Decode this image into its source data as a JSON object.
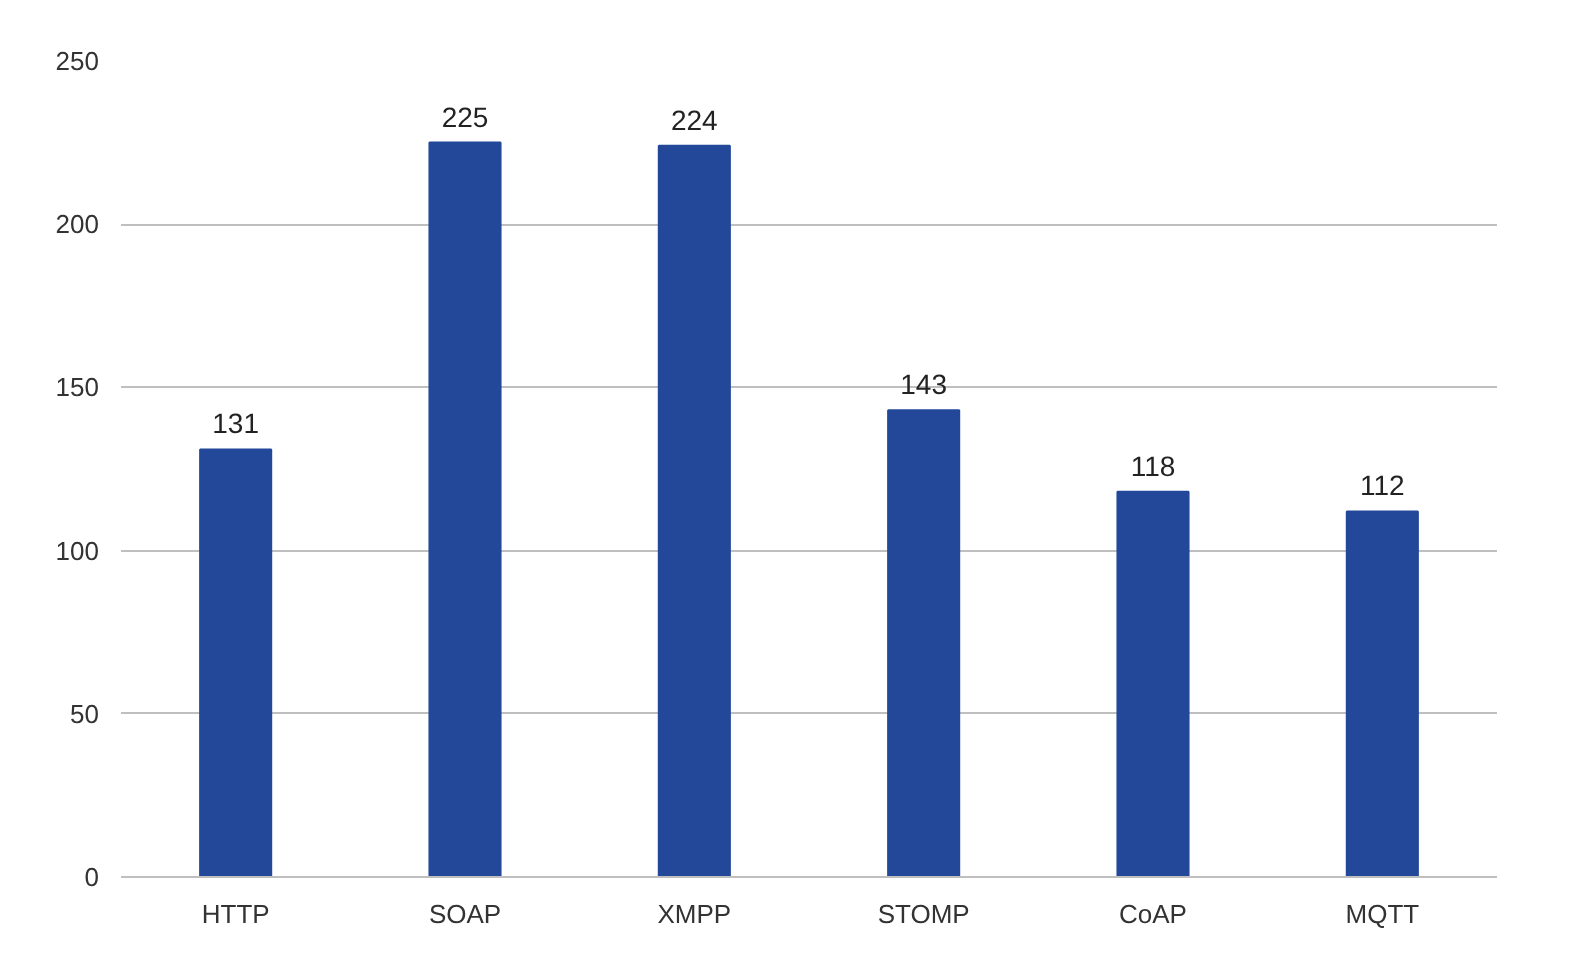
{
  "chart_data": {
    "type": "bar",
    "categories": [
      "HTTP",
      "SOAP",
      "XMPP",
      "STOMP",
      "CoAP",
      "MQTT"
    ],
    "values": [
      131,
      225,
      224,
      143,
      118,
      112
    ],
    "color": "#23489a",
    "ylim": [
      0,
      250
    ],
    "yticks": [
      0,
      50,
      100,
      150,
      200,
      250
    ],
    "grid": "y",
    "data_labels": true
  }
}
